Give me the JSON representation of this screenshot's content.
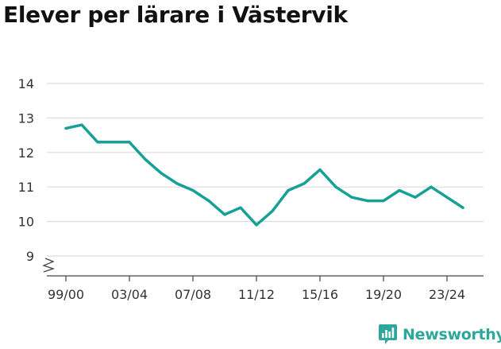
{
  "title": "Elever per lärare i Västervik",
  "brand": {
    "name": "Newsworthy",
    "color": "#2ea79b"
  },
  "chart_data": {
    "type": "line",
    "title": "Elever per lärare i Västervik",
    "xlabel": "",
    "ylabel": "",
    "x": [
      "99/00",
      "00/01",
      "01/02",
      "02/03",
      "03/04",
      "04/05",
      "05/06",
      "06/07",
      "07/08",
      "08/09",
      "09/10",
      "10/11",
      "11/12",
      "12/13",
      "13/14",
      "14/15",
      "15/16",
      "16/17",
      "17/18",
      "18/19",
      "19/20",
      "20/21",
      "21/22",
      "22/23",
      "23/24",
      "24/25"
    ],
    "x_tick_labels": [
      "99/00",
      "03/04",
      "07/08",
      "11/12",
      "15/16",
      "19/20",
      "23/24"
    ],
    "series": [
      {
        "values": [
          12.7,
          12.8,
          12.3,
          12.3,
          12.3,
          11.8,
          11.4,
          11.1,
          10.9,
          10.6,
          10.2,
          10.4,
          9.9,
          10.3,
          10.9,
          11.1,
          11.5,
          11.0,
          10.7,
          10.6,
          10.6,
          10.9,
          10.7,
          11.0,
          10.7,
          10.4
        ],
        "color": "#17a095"
      }
    ],
    "yticks": [
      9,
      10,
      11,
      12,
      13,
      14
    ],
    "ylim": [
      8.6,
      14
    ],
    "axis_break": true,
    "grid": true
  }
}
